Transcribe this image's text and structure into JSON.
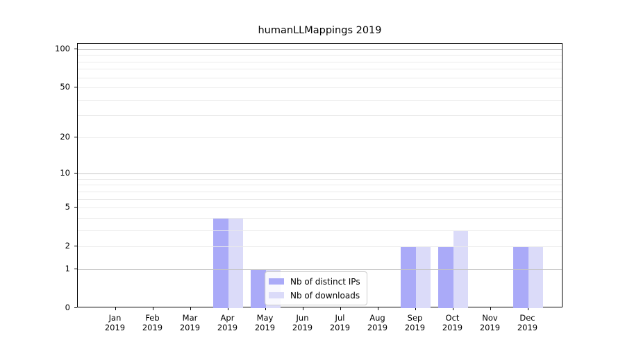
{
  "chart_data": {
    "type": "bar",
    "title": "humanLLMappings 2019",
    "xlabel": "",
    "ylabel": "",
    "year_label": "2019",
    "categories": [
      "Jan",
      "Feb",
      "Mar",
      "Apr",
      "May",
      "Jun",
      "Jul",
      "Aug",
      "Sep",
      "Oct",
      "Nov",
      "Dec"
    ],
    "xtick_labels": [
      [
        "Jan",
        "2019"
      ],
      [
        "Feb",
        "2019"
      ],
      [
        "Mar",
        "2019"
      ],
      [
        "Apr",
        "2019"
      ],
      [
        "May",
        "2019"
      ],
      [
        "Jun",
        "2019"
      ],
      [
        "Jul",
        "2019"
      ],
      [
        "Aug",
        "2019"
      ],
      [
        "Sep",
        "2019"
      ],
      [
        "Oct",
        "2019"
      ],
      [
        "Nov",
        "2019"
      ],
      [
        "Dec",
        "2019"
      ]
    ],
    "series": [
      {
        "name": "Nb of distinct IPs",
        "color": "#aaaaf8",
        "values": [
          0,
          0,
          0,
          4,
          1,
          0,
          0,
          0,
          2,
          2,
          0,
          2
        ]
      },
      {
        "name": "Nb of downloads",
        "color": "#dbdbf9",
        "values": [
          0,
          0,
          0,
          4,
          1,
          0,
          0,
          0,
          2,
          3,
          0,
          2
        ]
      }
    ],
    "yaxis": {
      "scale": "log1p",
      "ticks": [
        0,
        1,
        2,
        5,
        10,
        20,
        50,
        100
      ],
      "major_gridlines": [
        1,
        10,
        100
      ],
      "minor_gridlines": [
        2,
        3,
        4,
        5,
        6,
        7,
        8,
        9,
        20,
        30,
        40,
        50,
        60,
        70,
        80,
        90
      ],
      "ylim": [
        0,
        110
      ]
    },
    "grid": "horizontal",
    "legend_position": "inside lower-center-left",
    "colors": {
      "major_grid": "#c4c4c4",
      "minor_grid": "#eaeaea",
      "axis": "#000000",
      "legend_border": "#cccccc"
    }
  }
}
